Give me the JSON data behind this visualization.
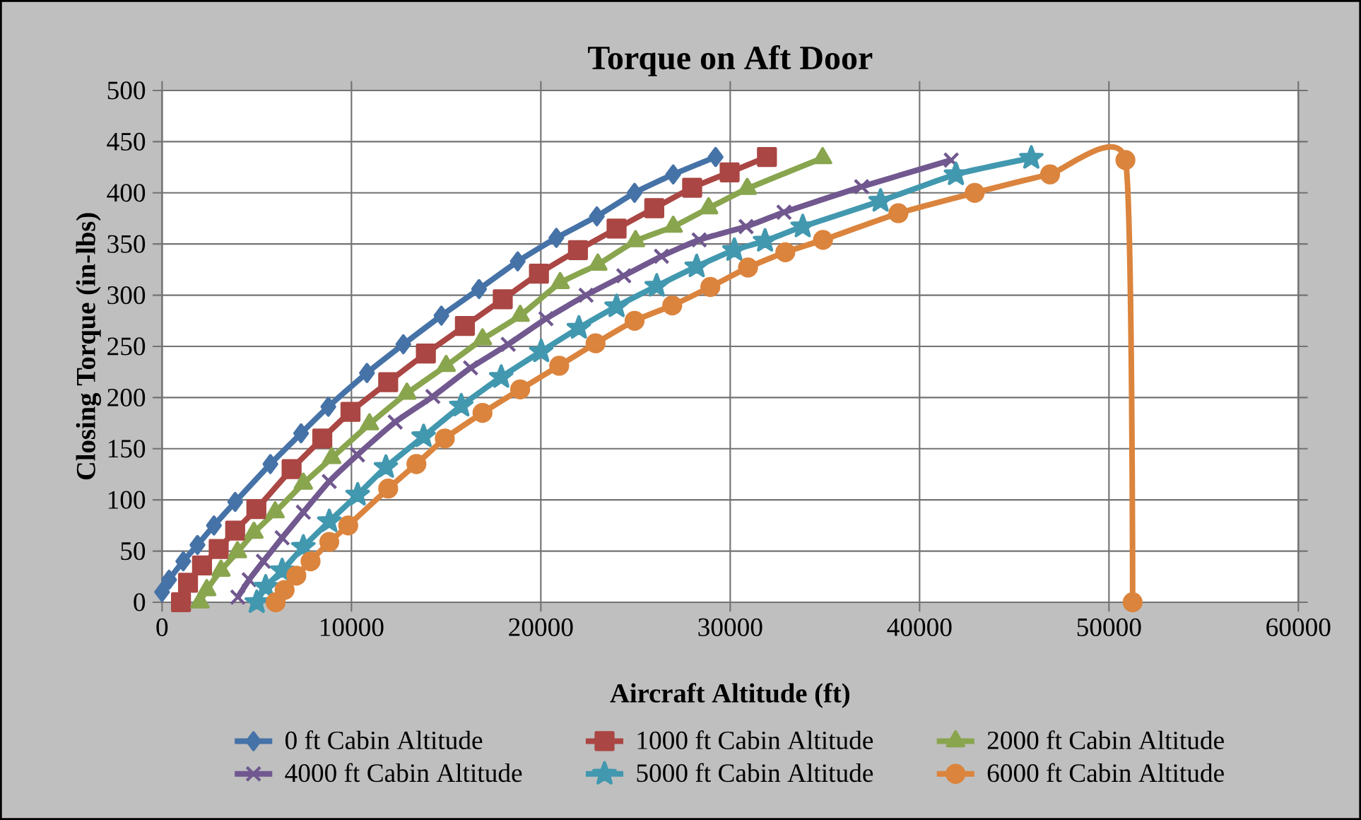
{
  "chart_data": {
    "type": "line",
    "title": "Torque on Aft Door",
    "xlabel": "Aircraft Altitude (ft)",
    "ylabel": "Closing Torque (in-lbs)",
    "xlim": [
      0,
      60000
    ],
    "xticks": [
      0,
      10000,
      20000,
      30000,
      40000,
      50000,
      60000
    ],
    "ylim": [
      0,
      500
    ],
    "yticks": [
      0,
      50,
      100,
      150,
      200,
      250,
      300,
      350,
      400,
      450,
      500
    ],
    "grid": true,
    "legend": "bottom",
    "line_style": "solid",
    "series": [
      {
        "name": "0 ft Cabin Altitude",
        "color": "#4572a7",
        "marker": "diamond",
        "x": [
          0,
          370,
          1120,
          1870,
          2740,
          3860,
          5720,
          7340,
          8780,
          10820,
          12740,
          14750,
          16740,
          18780,
          20820,
          22960,
          24950,
          26990,
          29230
        ],
        "values": [
          10,
          22,
          40,
          56,
          75,
          98,
          135,
          165,
          191,
          224,
          252,
          280,
          306,
          333,
          356,
          377,
          400,
          418,
          435
        ]
      },
      {
        "name": "1000 ft Cabin Altitude",
        "color": "#aa4643",
        "marker": "square",
        "x": [
          1000,
          1370,
          2110,
          2990,
          3860,
          4980,
          6840,
          8460,
          9950,
          11940,
          13930,
          15990,
          17990,
          19900,
          21960,
          24000,
          25990,
          27990,
          29970,
          31940
        ],
        "values": [
          0,
          19,
          36,
          52,
          70,
          91,
          130,
          160,
          186,
          215,
          243,
          270,
          296,
          321,
          344,
          365,
          385,
          405,
          420,
          435
        ]
      },
      {
        "name": "2000 ft Cabin Altitude",
        "color": "#89a54e",
        "marker": "triangle",
        "x": [
          2000,
          2360,
          3110,
          3980,
          4850,
          5970,
          7460,
          8960,
          10950,
          12930,
          15000,
          16920,
          18910,
          21020,
          23010,
          25000,
          26990,
          28860,
          30900,
          34880
        ],
        "values": [
          0,
          12,
          31,
          49,
          68,
          88,
          116,
          141,
          174,
          204,
          231,
          257,
          280,
          312,
          330,
          353,
          367,
          385,
          404,
          434
        ]
      },
      {
        "name": "4000 ft Cabin Altitude",
        "color": "#71588f",
        "marker": "cross",
        "x": [
          4000,
          4600,
          5350,
          6340,
          7460,
          8830,
          10320,
          12310,
          14300,
          16290,
          18280,
          20270,
          22390,
          24380,
          26370,
          28360,
          30840,
          32840,
          36940,
          41670
        ],
        "values": [
          5,
          22,
          40,
          63,
          88,
          118,
          144,
          176,
          201,
          229,
          252,
          277,
          300,
          319,
          338,
          354,
          367,
          381,
          406,
          432
        ]
      },
      {
        "name": "5000 ft Cabin Altitude",
        "color": "#4198af",
        "marker": "star",
        "x": [
          5000,
          5470,
          6340,
          7460,
          8830,
          10330,
          11820,
          13810,
          15800,
          17910,
          20020,
          22010,
          24000,
          26120,
          28230,
          30220,
          31840,
          33830,
          37940,
          41920,
          45900
        ],
        "values": [
          0,
          15,
          31,
          54,
          79,
          105,
          132,
          162,
          192,
          220,
          245,
          268,
          289,
          309,
          328,
          344,
          353,
          367,
          392,
          418,
          434
        ]
      },
      {
        "name": "6000 ft Cabin Altitude",
        "color": "#db843d",
        "marker": "circle",
        "x": [
          6000,
          6470,
          7090,
          7840,
          8830,
          9830,
          11940,
          13430,
          14930,
          16920,
          18910,
          20970,
          22890,
          24950,
          26940,
          28950,
          30940,
          32910,
          34900,
          38880,
          42910,
          46890,
          50870,
          51250
        ],
        "values": [
          0,
          12,
          26,
          40,
          59,
          75,
          111,
          135,
          160,
          185,
          208,
          231,
          253,
          275,
          290,
          308,
          327,
          342,
          354,
          380,
          400,
          418,
          432,
          0
        ]
      }
    ]
  }
}
